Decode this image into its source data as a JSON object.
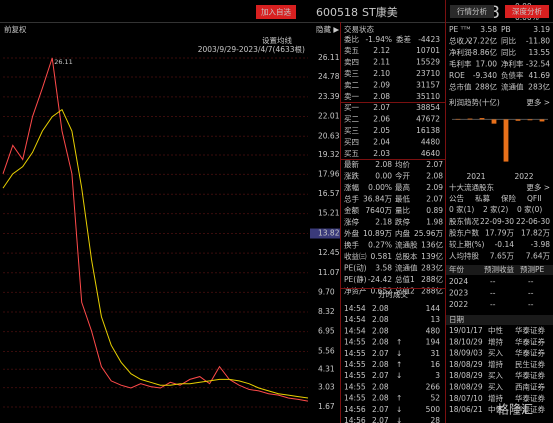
{
  "toolbar": {
    "add_button": "加入自选",
    "code": "600518",
    "name": "ST康美",
    "price": "2.08",
    "change": "0.00",
    "change_pct": "0.00%"
  },
  "chart_panel": {
    "mode": "前复权",
    "hide": "隐藏 ▶",
    "ma_setting": "设置均线",
    "range": "2003/9/29-2023/4/7(4633根)",
    "peak_label": 26.11,
    "cursor_label": 13.82,
    "ylim": [
      1.67,
      26.11
    ],
    "yticks": [
      26.11,
      24.78,
      23.39,
      22.01,
      20.63,
      19.32,
      17.96,
      16.57,
      15.21,
      13.82,
      12.45,
      11.07,
      {
        "value": 9.7,
        "label": "9.70"
      },
      8.32,
      6.95,
      5.56,
      4.31,
      3.03,
      1.67
    ],
    "grid": true,
    "series": [
      {
        "color": "#ff4a4a",
        "values": [
          18,
          20,
          19,
          22,
          24,
          26.11,
          21,
          18,
          9,
          7,
          4.5,
          3.5,
          3.2,
          3.0,
          3.3,
          3.1,
          3.0,
          3.4,
          3.2,
          3.6,
          3.8,
          3.3,
          4.5,
          3.6,
          3.2,
          2.9,
          2.8,
          2.6,
          2.5,
          2.3,
          2.2,
          2.08
        ]
      },
      {
        "color": "#e8d000",
        "values": [
          17,
          18,
          18.5,
          19.5,
          21,
          22,
          22.5,
          21,
          17,
          12,
          8,
          6,
          4.8,
          4,
          3.6,
          3.4,
          3.2,
          3.2,
          3.3,
          3.3,
          3.4,
          3.5,
          3.6,
          3.6,
          3.5,
          3.3,
          3.0,
          2.8,
          2.6,
          2.5,
          2.4,
          2.3
        ]
      }
    ]
  },
  "order_book": {
    "header": "交易状态",
    "ratio_label": "委比",
    "ratio": "-1.94%",
    "diff_label": "委差",
    "diff": "-4423",
    "asks": [
      [
        "卖五",
        "2.12",
        "10701"
      ],
      [
        "卖四",
        "2.11",
        "15529"
      ],
      [
        "卖三",
        "2.10",
        "23710"
      ],
      [
        "卖二",
        "2.09",
        "31157"
      ],
      [
        "卖一",
        "2.08",
        "35110"
      ]
    ],
    "bids": [
      [
        "买一",
        "2.07",
        "38854"
      ],
      [
        "买二",
        "2.06",
        "47672"
      ],
      [
        "买三",
        "2.05",
        "16138"
      ],
      [
        "买四",
        "2.04",
        "4480"
      ],
      [
        "买五",
        "2.03",
        "4640"
      ]
    ]
  },
  "stats": [
    [
      "最新",
      "2.08",
      "均价",
      "2.07"
    ],
    [
      "涨跌",
      "0.00",
      "今开",
      "2.08"
    ],
    [
      "涨幅",
      "0.00%",
      "最高",
      "2.09"
    ],
    [
      "总手",
      "36.84万",
      "最低",
      "2.07"
    ],
    [
      "金额",
      "7640万",
      "量比",
      "0.89"
    ],
    [
      "涨停",
      "2.18",
      "跌停",
      "1.98"
    ],
    [
      "外盘",
      "10.89万",
      "内盘",
      "25.96万"
    ],
    [
      "换手",
      "0.27%",
      "流通股",
      "136亿"
    ],
    [
      "收益㈢",
      "0.581",
      "总股本",
      "139亿"
    ],
    [
      "PE(动)",
      "3.58",
      "流通值",
      "283亿"
    ],
    [
      "PE(静)",
      "-24.42",
      "总值1",
      "288亿"
    ],
    [
      "净资产",
      "0.652",
      "总值2",
      "288亿"
    ]
  ],
  "trades": {
    "title": "分时成交",
    "rows": [
      {
        "time": "14:54",
        "price": "2.08",
        "vol": "144"
      },
      {
        "time": "14:54",
        "price": "2.08",
        "vol": "13"
      },
      {
        "time": "14:54",
        "price": "2.08",
        "vol": "480"
      },
      {
        "time": "14:55",
        "price": "2.08",
        "dir": "↑",
        "vol": "194"
      },
      {
        "time": "14:55",
        "price": "2.07",
        "dir": "↓",
        "vol": "31"
      },
      {
        "time": "14:55",
        "price": "2.08",
        "dir": "↑",
        "vol": "16"
      },
      {
        "time": "14:55",
        "price": "2.07",
        "dir": "↓",
        "vol": "3"
      },
      {
        "time": "14:55",
        "price": "2.08",
        "vol": "266"
      },
      {
        "time": "14:55",
        "price": "2.08",
        "dir": "↑",
        "vol": "52"
      },
      {
        "time": "14:56",
        "price": "2.07",
        "dir": "↓",
        "vol": "500"
      },
      {
        "time": "14:56",
        "price": "2.07",
        "dir": "↓",
        "vol": "28"
      }
    ]
  },
  "analysis": {
    "tabs": [
      "行情分析",
      "深度分析"
    ],
    "metrics": [
      [
        "PE ᵀᵀᴹ",
        "3.58",
        "PB",
        "3.19"
      ],
      [
        "总收入",
        "27.22亿",
        "同比",
        "-11.80"
      ],
      [
        "净利润",
        "-8.86亿",
        "同比",
        "13.55"
      ],
      [
        "毛利率",
        "17.00",
        "净利率",
        "-32.54"
      ],
      [
        "ROE",
        "-9.340",
        "负债率",
        "41.69"
      ],
      [
        "总市值",
        "288亿",
        "流通值",
        "283亿"
      ]
    ],
    "profit_title": "利润趋势(十亿)",
    "profit_more": "更多 >",
    "profit_chart": {
      "type": "bar",
      "categories": [
        "2021",
        "2022"
      ],
      "values": [
        0.3,
        0.5,
        0.8,
        -2.5,
        -25,
        -0.8,
        -0.5,
        -1.2
      ],
      "ylim": [
        -30,
        5
      ],
      "color": "#e8701a"
    },
    "holders_title": "十大流通股东",
    "holders_more": "更多 >",
    "inst_header": [
      "公告",
      "私募",
      "保险",
      "QFII"
    ],
    "inst_counts": [
      "0 家(1)",
      "2 家(2)",
      "0 家(0)"
    ],
    "holders": [
      [
        "股东情况",
        "22-09-30",
        "22-06-30"
      ],
      [
        "股东户数",
        "17.79万",
        "17.82万"
      ],
      [
        "较上期(%)",
        "-0.14",
        "-3.98"
      ],
      [
        "人均持股",
        "7.65万",
        "7.64万"
      ]
    ],
    "forecast": {
      "header": [
        "年份",
        "预测收益",
        "预测PE"
      ],
      "rows": [
        [
          "2024",
          "--",
          "--"
        ],
        [
          "2023",
          "--",
          "--"
        ],
        [
          "2022",
          "--",
          "--"
        ]
      ]
    },
    "ratings": {
      "header": "日期",
      "rows": [
        [
          "19/01/17",
          "中性",
          "华泰证券"
        ],
        [
          "18/10/29",
          "增持",
          "华泰证券"
        ],
        [
          "18/09/03",
          "买入",
          "华泰证券"
        ],
        [
          "18/08/29",
          "增持",
          "民生证券"
        ],
        [
          "18/08/29",
          "买入",
          "华泰证券"
        ],
        [
          "18/08/29",
          "买入",
          "西南证券"
        ],
        [
          "18/07/10",
          "增持",
          "华泰证券"
        ],
        [
          "18/06/21",
          "中性",
          "华泰证券"
        ]
      ]
    }
  },
  "watermark": "格隆汇"
}
